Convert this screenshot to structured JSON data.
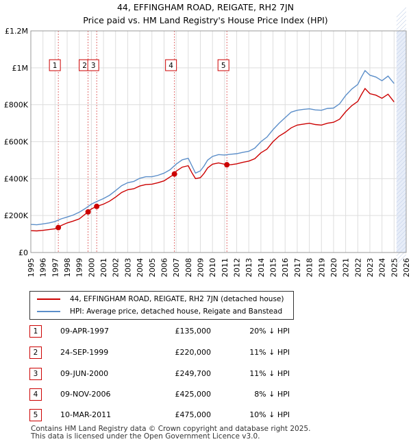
{
  "title_line1": "44, EFFINGHAM ROAD, REIGATE, RH2 7JN",
  "title_line2": "Price paid vs. HM Land Registry's House Price Index (HPI)",
  "legend": {
    "property_label": "44, EFFINGHAM ROAD, REIGATE, RH2 7JN (detached house)",
    "hpi_label": "HPI: Average price, detached house, Reigate and Banstead"
  },
  "colors": {
    "property": "#cc0000",
    "hpi": "#5b8ec9",
    "shade": "#dde6f5",
    "sale_line": "#cc0000"
  },
  "sales": [
    {
      "num": "1",
      "date": "09-APR-1997",
      "price": "£135,000",
      "hpi_diff": "20% ↓ HPI",
      "year": 1997.27,
      "value": 135000
    },
    {
      "num": "2",
      "date": "24-SEP-1999",
      "price": "£220,000",
      "hpi_diff": "11% ↓ HPI",
      "year": 1999.73,
      "value": 220000
    },
    {
      "num": "3",
      "date": "09-JUN-2000",
      "price": "£249,700",
      "hpi_diff": "11% ↓ HPI",
      "year": 2000.44,
      "value": 249700
    },
    {
      "num": "4",
      "date": "09-NOV-2006",
      "price": "£425,000",
      "hpi_diff": "8% ↓ HPI",
      "year": 2006.86,
      "value": 425000
    },
    {
      "num": "5",
      "date": "10-MAR-2011",
      "price": "£475,000",
      "hpi_diff": "10% ↓ HPI",
      "year": 2011.19,
      "value": 475000
    }
  ],
  "footer_line1": "Contains HM Land Registry data © Crown copyright and database right 2025.",
  "footer_line2": "This data is licensed under the Open Government Licence v3.0.",
  "chart_data": {
    "type": "line",
    "xlim": [
      1995,
      2026
    ],
    "ylim": [
      0,
      1200000
    ],
    "x_ticks": [
      1995,
      1996,
      1997,
      1998,
      1999,
      2000,
      2001,
      2002,
      2003,
      2004,
      2005,
      2006,
      2007,
      2008,
      2009,
      2010,
      2011,
      2012,
      2013,
      2014,
      2015,
      2016,
      2017,
      2018,
      2019,
      2020,
      2021,
      2022,
      2023,
      2024,
      2025,
      2026
    ],
    "y_ticks": [
      {
        "value": 0,
        "label": "£0"
      },
      {
        "value": 200000,
        "label": "£200K"
      },
      {
        "value": 400000,
        "label": "£400K"
      },
      {
        "value": 600000,
        "label": "£600K"
      },
      {
        "value": 800000,
        "label": "£800K"
      },
      {
        "value": 1000000,
        "label": "£1M"
      },
      {
        "value": 1200000,
        "label": "£1.2M"
      }
    ],
    "future_shade_from": 2025.2,
    "series": [
      {
        "name": "HPI: Average price, detached house, Reigate and Banstead",
        "x": [
          1995,
          1995.5,
          1996,
          1996.5,
          1997,
          1997.5,
          1998,
          1998.5,
          1999,
          1999.5,
          2000,
          2000.5,
          2001,
          2001.5,
          2002,
          2002.5,
          2003,
          2003.5,
          2004,
          2004.5,
          2005,
          2005.5,
          2006,
          2006.5,
          2007,
          2007.5,
          2008,
          2008.3,
          2008.6,
          2009,
          2009.3,
          2009.6,
          2010,
          2010.5,
          2011,
          2011.5,
          2012,
          2012.5,
          2013,
          2013.5,
          2014,
          2014.5,
          2015,
          2015.5,
          2016,
          2016.5,
          2017,
          2017.5,
          2018,
          2018.5,
          2019,
          2019.5,
          2020,
          2020.5,
          2021,
          2021.5,
          2022,
          2022.3,
          2022.6,
          2023,
          2023.5,
          2024,
          2024.5,
          2025
        ],
        "y": [
          152000,
          150000,
          155000,
          160000,
          168000,
          182000,
          192000,
          203000,
          218000,
          238000,
          262000,
          278000,
          292000,
          310000,
          335000,
          362000,
          378000,
          385000,
          402000,
          410000,
          410000,
          418000,
          430000,
          448000,
          478000,
          502000,
          510000,
          470000,
          430000,
          442000,
          468000,
          500000,
          520000,
          530000,
          528000,
          532000,
          535000,
          542000,
          548000,
          565000,
          600000,
          625000,
          665000,
          700000,
          730000,
          760000,
          770000,
          775000,
          778000,
          772000,
          770000,
          780000,
          782000,
          805000,
          850000,
          885000,
          910000,
          950000,
          985000,
          960000,
          950000,
          930000,
          955000,
          915000
        ]
      },
      {
        "name": "44, EFFINGHAM ROAD, REIGATE, RH2 7JN (detached house)",
        "x": [
          1995,
          1995.5,
          1996,
          1996.5,
          1997,
          1997.27,
          1997.5,
          1998,
          1998.5,
          1999,
          1999.73,
          2000,
          2000.44,
          2001,
          2001.5,
          2002,
          2002.5,
          2003,
          2003.5,
          2004,
          2004.5,
          2005,
          2005.5,
          2006,
          2006.86,
          2007,
          2007.5,
          2008,
          2008.3,
          2008.6,
          2009,
          2009.3,
          2009.6,
          2010,
          2010.5,
          2011.19,
          2011.5,
          2012,
          2012.5,
          2013,
          2013.5,
          2014,
          2014.5,
          2015,
          2015.5,
          2016,
          2016.5,
          2017,
          2017.5,
          2018,
          2018.5,
          2019,
          2019.5,
          2020,
          2020.5,
          2021,
          2021.5,
          2022,
          2022.3,
          2022.6,
          2023,
          2023.5,
          2024,
          2024.5,
          2025
        ],
        "y": [
          118000,
          117000,
          120000,
          124000,
          128000,
          135000,
          146000,
          160000,
          170000,
          182000,
          220000,
          236000,
          249700,
          262000,
          278000,
          300000,
          325000,
          340000,
          345000,
          360000,
          368000,
          370000,
          378000,
          388000,
          425000,
          440000,
          462000,
          470000,
          432000,
          400000,
          405000,
          428000,
          458000,
          478000,
          485000,
          475000,
          475000,
          480000,
          488000,
          495000,
          508000,
          540000,
          560000,
          600000,
          630000,
          650000,
          675000,
          690000,
          695000,
          700000,
          693000,
          690000,
          700000,
          705000,
          722000,
          762000,
          795000,
          818000,
          855000,
          888000,
          860000,
          852000,
          835000,
          857000,
          815000
        ]
      }
    ]
  }
}
